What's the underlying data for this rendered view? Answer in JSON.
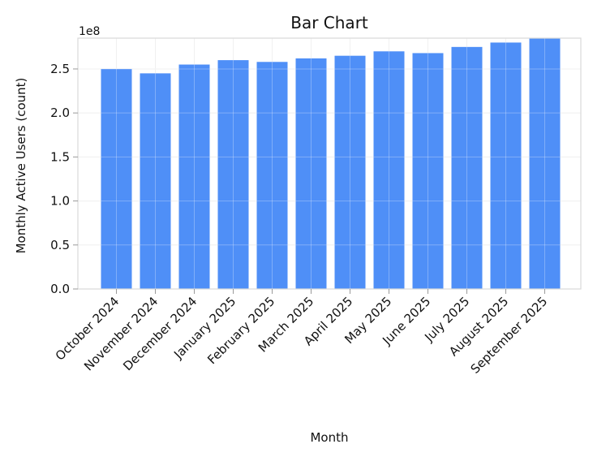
{
  "chart_data": {
    "type": "bar",
    "title": "Bar Chart",
    "xlabel": "Month",
    "ylabel": "Monthly Active Users (count)",
    "y_offset_label": "1e8",
    "categories": [
      "October 2024",
      "November 2024",
      "December 2024",
      "January 2025",
      "February 2025",
      "March 2025",
      "April 2025",
      "May 2025",
      "June 2025",
      "July 2025",
      "August 2025",
      "September 2025"
    ],
    "values": [
      250000000,
      245000000,
      255000000,
      260000000,
      258000000,
      262000000,
      265000000,
      270000000,
      268000000,
      275000000,
      280000000,
      285000000
    ],
    "ylim": [
      0,
      285000000
    ],
    "yticks": [
      0,
      50000000,
      100000000,
      150000000,
      200000000,
      250000000
    ],
    "ytick_labels": [
      "0.0",
      "0.5",
      "1.0",
      "1.5",
      "2.0",
      "2.5"
    ],
    "grid": true,
    "bar_color": "#4f8ff7",
    "grid_color": "#ebebeb",
    "axis_color": "#d9d9d9"
  }
}
